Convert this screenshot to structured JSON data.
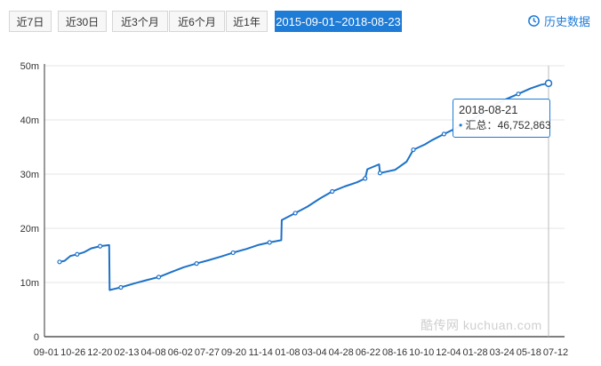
{
  "toolbar": {
    "tabs": [
      {
        "label": "近7日",
        "active": false
      },
      {
        "label": "近30日",
        "active": false
      },
      {
        "label": "近3个月",
        "active": false
      },
      {
        "label": "近6个月",
        "active": false
      },
      {
        "label": "近1年",
        "active": false
      },
      {
        "label": "2015-09-01~2018-08-23",
        "active": true
      }
    ],
    "history_label": "历史数据",
    "history_icon": "clock-refresh-icon"
  },
  "tooltip": {
    "date": "2018-08-21",
    "series_label": "汇总：",
    "value": "46,752,863"
  },
  "watermark": "酷传网 kuchuan.com",
  "colors": {
    "accent": "#1e7bd6",
    "line": "#1e72c8",
    "grid": "#e6e6e6"
  },
  "chart_data": {
    "type": "line",
    "ylim": [
      0,
      50000000
    ],
    "y_ticks": [
      "0",
      "10m",
      "20m",
      "30m",
      "40m",
      "50m"
    ],
    "x_ticks": [
      "09-01",
      "10-26",
      "12-20",
      "02-13",
      "04-08",
      "06-02",
      "07-27",
      "09-20",
      "11-14",
      "01-08",
      "03-04",
      "04-28",
      "06-22",
      "08-16",
      "10-10",
      "12-04",
      "01-28",
      "03-24",
      "05-18",
      "07-12"
    ],
    "grid": true,
    "legend": "none",
    "series": [
      {
        "values": [
          [
            "2015-09-01",
            13800000
          ],
          [
            "2015-09-12",
            14000000
          ],
          [
            "2015-09-25",
            14900000
          ],
          [
            "2015-10-10",
            15200000
          ],
          [
            "2015-10-26",
            15600000
          ],
          [
            "2015-11-10",
            16300000
          ],
          [
            "2015-11-30",
            16700000
          ],
          [
            "2015-12-20",
            16900000
          ],
          [
            "2015-12-21",
            8600000
          ],
          [
            "2016-01-15",
            9100000
          ],
          [
            "2016-02-13",
            9800000
          ],
          [
            "2016-03-10",
            10400000
          ],
          [
            "2016-04-08",
            11000000
          ],
          [
            "2016-05-05",
            11900000
          ],
          [
            "2016-06-02",
            12800000
          ],
          [
            "2016-07-01",
            13500000
          ],
          [
            "2016-07-27",
            14100000
          ],
          [
            "2016-08-25",
            14800000
          ],
          [
            "2016-09-20",
            15500000
          ],
          [
            "2016-10-20",
            16200000
          ],
          [
            "2016-11-14",
            16900000
          ],
          [
            "2016-12-10",
            17400000
          ],
          [
            "2017-01-05",
            17800000
          ],
          [
            "2017-01-06",
            21500000
          ],
          [
            "2017-02-05",
            22800000
          ],
          [
            "2017-03-04",
            24000000
          ],
          [
            "2017-04-01",
            25500000
          ],
          [
            "2017-04-28",
            26800000
          ],
          [
            "2017-05-25",
            27700000
          ],
          [
            "2017-06-22",
            28500000
          ],
          [
            "2017-07-10",
            29200000
          ],
          [
            "2017-07-15",
            30900000
          ],
          [
            "2017-08-10",
            31800000
          ],
          [
            "2017-08-12",
            30200000
          ],
          [
            "2017-09-15",
            30800000
          ],
          [
            "2017-10-10",
            32300000
          ],
          [
            "2017-10-25",
            34500000
          ],
          [
            "2017-11-20",
            35500000
          ],
          [
            "2017-12-04",
            36200000
          ],
          [
            "2018-01-01",
            37400000
          ],
          [
            "2018-01-28",
            38500000
          ],
          [
            "2018-02-25",
            39700000
          ],
          [
            "2018-03-24",
            41100000
          ],
          [
            "2018-04-20",
            42700000
          ],
          [
            "2018-05-18",
            43800000
          ],
          [
            "2018-06-15",
            44800000
          ],
          [
            "2018-07-12",
            45800000
          ],
          [
            "2018-08-05",
            46500000
          ],
          [
            "2018-08-21",
            46752863
          ]
        ]
      }
    ]
  }
}
